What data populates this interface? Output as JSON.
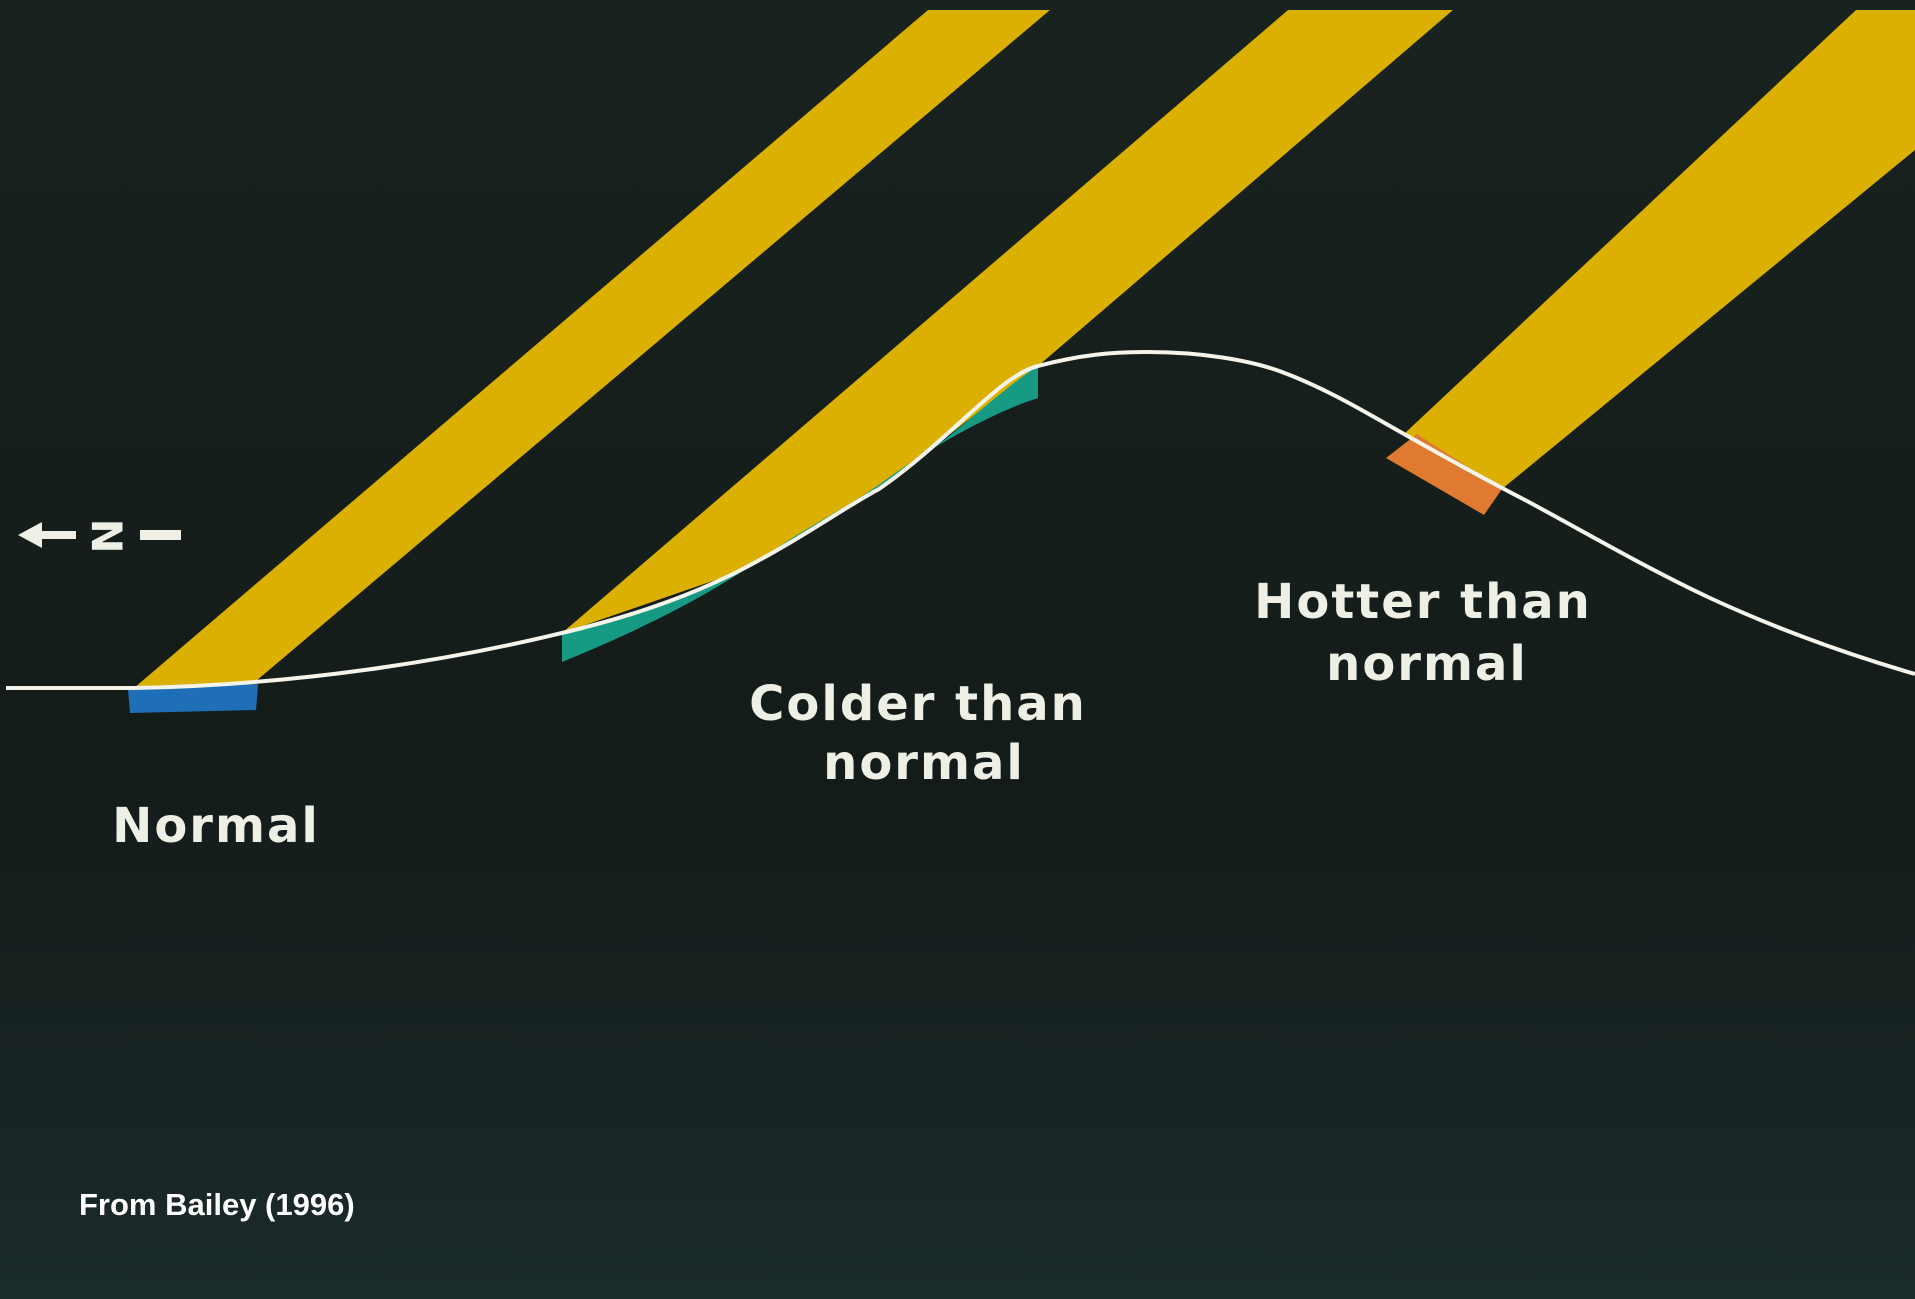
{
  "north_label": "N",
  "labels": {
    "normal": [
      "Normal"
    ],
    "colder": [
      "Colder than",
      "normal"
    ],
    "hotter": [
      "Hotter than",
      "normal"
    ]
  },
  "credit": "From Bailey (1996)"
}
